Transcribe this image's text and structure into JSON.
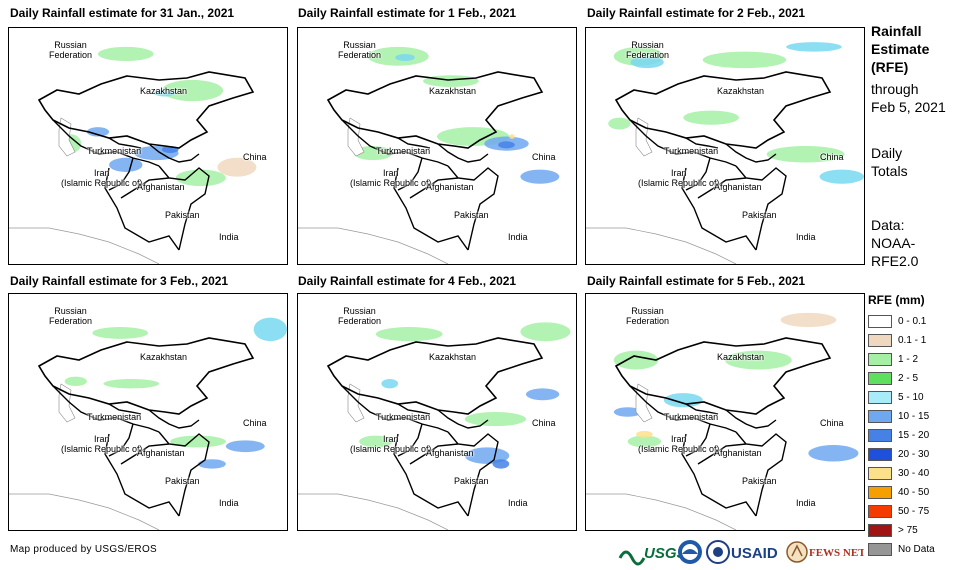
{
  "panels": [
    {
      "title": "Daily Rainfall estimate for 31 Jan., 2021",
      "fx": 8,
      "fy": 27,
      "tx": 10,
      "ty": 6,
      "rain": [
        [
          "#a5f0a5",
          0.32,
          0.08,
          0.2,
          0.06
        ],
        [
          "#a5f0a5",
          0.55,
          0.22,
          0.22,
          0.09
        ],
        [
          "#78d8f0",
          0.52,
          0.26,
          0.08,
          0.03
        ],
        [
          "#6ea8f0",
          0.28,
          0.42,
          0.08,
          0.04
        ],
        [
          "#6ea8f0",
          0.45,
          0.5,
          0.16,
          0.06
        ],
        [
          "#4682e6",
          0.55,
          0.5,
          0.06,
          0.03
        ],
        [
          "#6ea8f0",
          0.36,
          0.55,
          0.12,
          0.06
        ],
        [
          "#a5f0a5",
          0.6,
          0.6,
          0.18,
          0.07
        ],
        [
          "#f0d8c0",
          0.75,
          0.55,
          0.14,
          0.08
        ],
        [
          "#a5f0a5",
          0.18,
          0.45,
          0.08,
          0.08
        ]
      ]
    },
    {
      "title": "Daily Rainfall estimate for 1 Feb., 2021",
      "fx": 297,
      "fy": 27,
      "tx": 298,
      "ty": 6,
      "rain": [
        [
          "#a5f0a5",
          0.25,
          0.08,
          0.22,
          0.08
        ],
        [
          "#a5f0a5",
          0.45,
          0.2,
          0.2,
          0.05
        ],
        [
          "#78d8f0",
          0.35,
          0.11,
          0.07,
          0.03
        ],
        [
          "#a5f0a5",
          0.5,
          0.42,
          0.26,
          0.08
        ],
        [
          "#6ea8f0",
          0.67,
          0.46,
          0.16,
          0.06
        ],
        [
          "#4682e6",
          0.72,
          0.48,
          0.06,
          0.03
        ],
        [
          "#fde08c",
          0.76,
          0.45,
          0.02,
          0.02
        ],
        [
          "#6ea8f0",
          0.8,
          0.6,
          0.14,
          0.06
        ],
        [
          "#a5f0a5",
          0.2,
          0.5,
          0.14,
          0.06
        ]
      ]
    },
    {
      "title": "Daily Rainfall estimate for 2 Feb., 2021",
      "fx": 585,
      "fy": 27,
      "tx": 587,
      "ty": 6,
      "rain": [
        [
          "#a5f0a5",
          0.1,
          0.08,
          0.18,
          0.08
        ],
        [
          "#78d8f0",
          0.16,
          0.12,
          0.12,
          0.05
        ],
        [
          "#a5f0a5",
          0.42,
          0.1,
          0.3,
          0.07
        ],
        [
          "#78d8f0",
          0.72,
          0.06,
          0.2,
          0.04
        ],
        [
          "#a5f0a5",
          0.35,
          0.35,
          0.2,
          0.06
        ],
        [
          "#a5f0a5",
          0.65,
          0.5,
          0.28,
          0.07
        ],
        [
          "#78d8f0",
          0.84,
          0.6,
          0.16,
          0.06
        ],
        [
          "#a5f0a5",
          0.08,
          0.38,
          0.08,
          0.05
        ]
      ]
    },
    {
      "title": "Daily Rainfall estimate for 3 Feb., 2021",
      "fx": 8,
      "fy": 293,
      "tx": 10,
      "ty": 274,
      "rain": [
        [
          "#a5f0a5",
          0.3,
          0.14,
          0.2,
          0.05
        ],
        [
          "#a5f0a5",
          0.2,
          0.35,
          0.08,
          0.04
        ],
        [
          "#78d8f0",
          0.88,
          0.1,
          0.12,
          0.1
        ],
        [
          "#a5f0a5",
          0.34,
          0.36,
          0.2,
          0.04
        ],
        [
          "#a5f0a5",
          0.58,
          0.6,
          0.2,
          0.05
        ],
        [
          "#6ea8f0",
          0.78,
          0.62,
          0.14,
          0.05
        ],
        [
          "#6ea8f0",
          0.68,
          0.7,
          0.1,
          0.04
        ]
      ]
    },
    {
      "title": "Daily Rainfall estimate for 4 Feb., 2021",
      "fx": 297,
      "fy": 293,
      "tx": 298,
      "ty": 274,
      "rain": [
        [
          "#a5f0a5",
          0.28,
          0.14,
          0.24,
          0.06
        ],
        [
          "#78d8f0",
          0.3,
          0.36,
          0.06,
          0.04
        ],
        [
          "#a5f0a5",
          0.6,
          0.5,
          0.22,
          0.06
        ],
        [
          "#6ea8f0",
          0.82,
          0.4,
          0.12,
          0.05
        ],
        [
          "#6ea8f0",
          0.6,
          0.65,
          0.16,
          0.07
        ],
        [
          "#4682e6",
          0.7,
          0.7,
          0.06,
          0.04
        ],
        [
          "#a5f0a5",
          0.8,
          0.12,
          0.18,
          0.08
        ],
        [
          "#a5f0a5",
          0.22,
          0.6,
          0.12,
          0.05
        ]
      ]
    },
    {
      "title": "Daily Rainfall estimate for 5 Feb., 2021",
      "fx": 585,
      "fy": 293,
      "tx": 587,
      "ty": 274,
      "rain": [
        [
          "#a5f0a5",
          0.1,
          0.24,
          0.16,
          0.08
        ],
        [
          "#78d8f0",
          0.28,
          0.42,
          0.14,
          0.06
        ],
        [
          "#6ea8f0",
          0.1,
          0.48,
          0.1,
          0.04
        ],
        [
          "#a5f0a5",
          0.15,
          0.6,
          0.12,
          0.05
        ],
        [
          "#fde08c",
          0.18,
          0.58,
          0.06,
          0.03
        ],
        [
          "#6ea8f0",
          0.8,
          0.64,
          0.18,
          0.07
        ],
        [
          "#a5f0a5",
          0.5,
          0.24,
          0.24,
          0.08
        ],
        [
          "#f0d8c0",
          0.7,
          0.08,
          0.2,
          0.06
        ]
      ]
    }
  ],
  "map_labels": {
    "russia": "Russian\nFederation",
    "kazakhstan": "Kazakhstan",
    "turkmenistan": "Turkmenistan",
    "iran": "Iran\n(Islamic Republic of)",
    "afghanistan": "Afghanistan",
    "pakistan": "Pakistan",
    "china": "China",
    "india": "India"
  },
  "side": {
    "title_line1": "Rainfall",
    "title_line2": "Estimate",
    "title_line3": "(RFE)",
    "through": "through",
    "date": "Feb 5, 2021",
    "daily": "Daily",
    "totals": "Totals",
    "data_label": "Data:",
    "data_src1": "NOAA-",
    "data_src2": "RFE2.0"
  },
  "legend": {
    "title": "RFE (mm)",
    "items": [
      {
        "label": "0 - 0.1",
        "color": "#ffffff"
      },
      {
        "label": "0.1 - 1",
        "color": "#f0d8c0"
      },
      {
        "label": "1 - 2",
        "color": "#a5f0a5"
      },
      {
        "label": "2 - 5",
        "color": "#5ee05e"
      },
      {
        "label": "5 - 10",
        "color": "#a8ecfa"
      },
      {
        "label": "10 - 15",
        "color": "#6ea8f0"
      },
      {
        "label": "15 - 20",
        "color": "#4682e6"
      },
      {
        "label": "20 - 30",
        "color": "#1e50dc"
      },
      {
        "label": "30 - 40",
        "color": "#fde08c"
      },
      {
        "label": "40 - 50",
        "color": "#f5a000"
      },
      {
        "label": "50 - 75",
        "color": "#f53c00"
      },
      {
        "label": "> 75",
        "color": "#a01414"
      },
      {
        "label": "No Data",
        "color": "#969696"
      }
    ]
  },
  "footer": {
    "credit": "Map produced by USGS/EROS",
    "logo_usgs": "USGS",
    "logo_usaid": "USAID",
    "logo_fews": "FEWS NET"
  }
}
